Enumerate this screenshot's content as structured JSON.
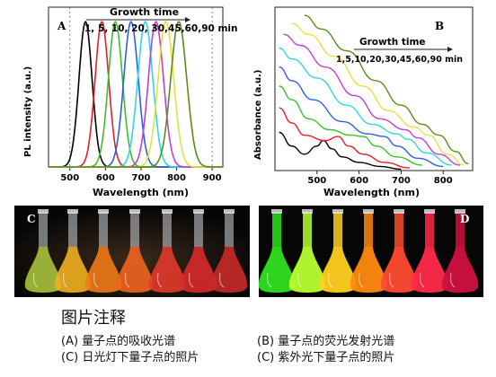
{
  "charts": {
    "A": {
      "panel_label": "A",
      "ylabel": "PL intensity (a.u.)",
      "xlabel": "Wavelength (nm)",
      "xticks": [
        "500",
        "600",
        "700",
        "800",
        "900"
      ],
      "annotation_title": "Growth time",
      "annotation_values": "1, 5, 10, 20, 30,45,60,90 min"
    },
    "B": {
      "panel_label": "B",
      "ylabel": "Absorbance (a.u.)",
      "xlabel": "Wavelength (nm)",
      "xticks": [
        "500",
        "600",
        "700",
        "800"
      ],
      "annotation_title": "Growth time",
      "annotation_values": "1,5,10,20,30,45,60,90 min"
    }
  },
  "photos": {
    "C": {
      "label": "C"
    },
    "D": {
      "label": "D"
    }
  },
  "caption": {
    "title": "图片注释",
    "a": "(A) 量子点的吸收光谱",
    "b": "(B) 量子点的荧光发射光谱",
    "c": "(C) 日光灯下量子点的照片",
    "d": "(C) 紫外光下量子点的照片"
  },
  "chart_data": [
    {
      "type": "line",
      "title": "",
      "xlabel": "Wavelength (nm)",
      "ylabel": "PL intensity (a.u.)",
      "xlim": [
        440,
        930
      ],
      "ylim": [
        0,
        1.1
      ],
      "grid": false,
      "legend": "none",
      "series": [
        {
          "color": "#000000",
          "peak": 544,
          "width": 26
        },
        {
          "color": "#e0202a",
          "peak": 590,
          "width": 27
        },
        {
          "color": "#3cbf2a",
          "peak": 628,
          "width": 28
        },
        {
          "color": "#2f5fe0",
          "peak": 672,
          "width": 29
        },
        {
          "color": "#30d6e0",
          "peak": 712,
          "width": 30
        },
        {
          "color": "#c040d0",
          "peak": 742,
          "width": 30
        },
        {
          "color": "#e8e040",
          "peak": 770,
          "width": 31
        },
        {
          "color": "#5a8c1a",
          "peak": 806,
          "width": 32
        }
      ]
    },
    {
      "type": "line",
      "title": "",
      "xlabel": "Wavelength (nm)",
      "ylabel": "Absorbance (a.u.)",
      "xlim": [
        400,
        870
      ],
      "ylim": [
        0,
        1.2
      ],
      "grid": false,
      "legend": "none",
      "series": [
        {
          "color": "#000000",
          "points": [
            [
              410,
              0.28
            ],
            [
              440,
              0.18
            ],
            [
              470,
              0.12
            ],
            [
              500,
              0.18
            ],
            [
              515,
              0.22
            ],
            [
              535,
              0.16
            ],
            [
              560,
              0.1
            ],
            [
              600,
              0.06
            ],
            [
              650,
              0.03
            ],
            [
              700,
              0.01
            ]
          ]
        },
        {
          "color": "#e0202a",
          "points": [
            [
              410,
              0.46
            ],
            [
              440,
              0.35
            ],
            [
              470,
              0.26
            ],
            [
              520,
              0.22
            ],
            [
              550,
              0.25
            ],
            [
              575,
              0.18
            ],
            [
              610,
              0.12
            ],
            [
              660,
              0.06
            ],
            [
              720,
              0.02
            ]
          ]
        },
        {
          "color": "#3cbf2a",
          "points": [
            [
              410,
              0.62
            ],
            [
              440,
              0.52
            ],
            [
              480,
              0.38
            ],
            [
              530,
              0.3
            ],
            [
              580,
              0.26
            ],
            [
              610,
              0.25
            ],
            [
              640,
              0.18
            ],
            [
              690,
              0.1
            ],
            [
              750,
              0.04
            ]
          ]
        },
        {
          "color": "#2f5fe0",
          "points": [
            [
              410,
              0.76
            ],
            [
              440,
              0.66
            ],
            [
              490,
              0.52
            ],
            [
              560,
              0.36
            ],
            [
              620,
              0.27
            ],
            [
              660,
              0.25
            ],
            [
              690,
              0.18
            ],
            [
              740,
              0.09
            ],
            [
              800,
              0.03
            ]
          ]
        },
        {
          "color": "#30d6e0",
          "points": [
            [
              410,
              0.9
            ],
            [
              440,
              0.82
            ],
            [
              500,
              0.68
            ],
            [
              570,
              0.48
            ],
            [
              630,
              0.34
            ],
            [
              690,
              0.27
            ],
            [
              715,
              0.23
            ],
            [
              760,
              0.13
            ],
            [
              820,
              0.04
            ]
          ]
        },
        {
          "color": "#c040d0",
          "points": [
            [
              420,
              1.0
            ],
            [
              460,
              0.92
            ],
            [
              520,
              0.76
            ],
            [
              590,
              0.55
            ],
            [
              650,
              0.38
            ],
            [
              710,
              0.3
            ],
            [
              740,
              0.24
            ],
            [
              790,
              0.12
            ],
            [
              840,
              0.04
            ]
          ]
        },
        {
          "color": "#e8e040",
          "points": [
            [
              440,
              1.08
            ],
            [
              480,
              1.0
            ],
            [
              540,
              0.84
            ],
            [
              610,
              0.62
            ],
            [
              670,
              0.44
            ],
            [
              730,
              0.32
            ],
            [
              765,
              0.26
            ],
            [
              810,
              0.12
            ],
            [
              850,
              0.04
            ]
          ]
        },
        {
          "color": "#5a8c1a",
          "points": [
            [
              470,
              1.14
            ],
            [
              510,
              1.04
            ],
            [
              570,
              0.88
            ],
            [
              640,
              0.66
            ],
            [
              700,
              0.48
            ],
            [
              750,
              0.34
            ],
            [
              790,
              0.26
            ],
            [
              830,
              0.14
            ],
            [
              860,
              0.05
            ]
          ]
        }
      ]
    }
  ]
}
